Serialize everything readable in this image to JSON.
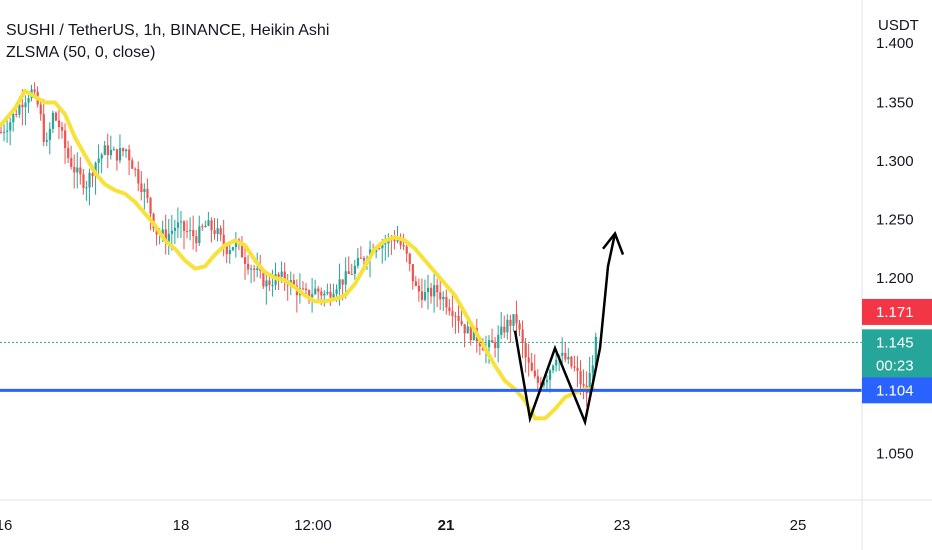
{
  "legend": {
    "symbol_line": "SUSHI / TetherUS, 1h, BINANCE, Heikin Ashi",
    "indicator_line": "ZLSMA (50, 0, close)"
  },
  "axis": {
    "currency": "USDT",
    "partial_top_label": "1.400",
    "price_ticks": [
      "1.350",
      "1.300",
      "1.250",
      "1.200",
      "1.050"
    ],
    "time_ticks": [
      "16",
      "18",
      "12:00",
      "21",
      "23",
      "25"
    ],
    "bold_time_tick": "21"
  },
  "tags": {
    "ask_price": "1.171",
    "last_price": "1.145",
    "countdown": "00:23",
    "support_price": "1.104"
  },
  "colors": {
    "up": "#26a69a",
    "down": "#ef5350",
    "zlsma": "#f7e23a",
    "support": "#2962ff",
    "drawing": "#000000",
    "ask_tag": "#f23645",
    "last_tag": "#26a69a",
    "support_tag": "#2962ff",
    "dotted_last": "#26a69a"
  },
  "chart_data": {
    "type": "candlestick",
    "chart_style": "Heikin Ashi",
    "x_axis": "time (1h bars)",
    "y_axis": "USDT",
    "ylim": [
      1.02,
      1.41
    ],
    "anchor_points": [
      [
        0,
        1.325
      ],
      [
        10,
        1.335
      ],
      [
        20,
        1.35
      ],
      [
        30,
        1.36
      ],
      [
        38,
        1.345
      ],
      [
        45,
        1.31
      ],
      [
        52,
        1.34
      ],
      [
        58,
        1.33
      ],
      [
        66,
        1.305
      ],
      [
        75,
        1.29
      ],
      [
        85,
        1.28
      ],
      [
        95,
        1.3
      ],
      [
        105,
        1.31
      ],
      [
        115,
        1.305
      ],
      [
        125,
        1.31
      ],
      [
        135,
        1.29
      ],
      [
        145,
        1.27
      ],
      [
        155,
        1.24
      ],
      [
        165,
        1.235
      ],
      [
        175,
        1.245
      ],
      [
        185,
        1.24
      ],
      [
        195,
        1.235
      ],
      [
        205,
        1.245
      ],
      [
        215,
        1.24
      ],
      [
        225,
        1.225
      ],
      [
        235,
        1.23
      ],
      [
        245,
        1.215
      ],
      [
        255,
        1.205
      ],
      [
        265,
        1.195
      ],
      [
        275,
        1.2
      ],
      [
        285,
        1.2
      ],
      [
        295,
        1.19
      ],
      [
        305,
        1.185
      ],
      [
        315,
        1.19
      ],
      [
        325,
        1.185
      ],
      [
        335,
        1.195
      ],
      [
        345,
        1.2
      ],
      [
        355,
        1.21
      ],
      [
        365,
        1.22
      ],
      [
        375,
        1.23
      ],
      [
        385,
        1.23
      ],
      [
        395,
        1.235
      ],
      [
        405,
        1.22
      ],
      [
        415,
        1.19
      ],
      [
        425,
        1.185
      ],
      [
        435,
        1.19
      ],
      [
        445,
        1.18
      ],
      [
        455,
        1.17
      ],
      [
        465,
        1.155
      ],
      [
        475,
        1.15
      ],
      [
        485,
        1.14
      ],
      [
        495,
        1.145
      ],
      [
        505,
        1.16
      ],
      [
        515,
        1.165
      ],
      [
        525,
        1.13
      ],
      [
        535,
        1.11
      ],
      [
        545,
        1.115
      ],
      [
        555,
        1.135
      ],
      [
        565,
        1.13
      ],
      [
        575,
        1.12
      ],
      [
        585,
        1.1
      ],
      [
        595,
        1.145
      ]
    ],
    "zlsma": [
      [
        0,
        1.33
      ],
      [
        15,
        1.345
      ],
      [
        25,
        1.36
      ],
      [
        35,
        1.355
      ],
      [
        45,
        1.35
      ],
      [
        55,
        1.35
      ],
      [
        65,
        1.34
      ],
      [
        75,
        1.32
      ],
      [
        85,
        1.305
      ],
      [
        95,
        1.29
      ],
      [
        105,
        1.28
      ],
      [
        115,
        1.275
      ],
      [
        125,
        1.272
      ],
      [
        135,
        1.265
      ],
      [
        145,
        1.255
      ],
      [
        155,
        1.245
      ],
      [
        165,
        1.232
      ],
      [
        175,
        1.225
      ],
      [
        185,
        1.215
      ],
      [
        195,
        1.208
      ],
      [
        205,
        1.21
      ],
      [
        215,
        1.22
      ],
      [
        225,
        1.228
      ],
      [
        235,
        1.232
      ],
      [
        245,
        1.228
      ],
      [
        255,
        1.215
      ],
      [
        265,
        1.205
      ],
      [
        275,
        1.2
      ],
      [
        285,
        1.198
      ],
      [
        295,
        1.192
      ],
      [
        305,
        1.185
      ],
      [
        315,
        1.18
      ],
      [
        325,
        1.18
      ],
      [
        335,
        1.182
      ],
      [
        345,
        1.185
      ],
      [
        355,
        1.195
      ],
      [
        365,
        1.21
      ],
      [
        375,
        1.225
      ],
      [
        385,
        1.232
      ],
      [
        395,
        1.235
      ],
      [
        405,
        1.232
      ],
      [
        415,
        1.225
      ],
      [
        425,
        1.215
      ],
      [
        435,
        1.205
      ],
      [
        445,
        1.195
      ],
      [
        455,
        1.185
      ],
      [
        465,
        1.17
      ],
      [
        475,
        1.155
      ],
      [
        485,
        1.14
      ],
      [
        495,
        1.125
      ],
      [
        505,
        1.112
      ],
      [
        515,
        1.105
      ],
      [
        525,
        1.095
      ],
      [
        535,
        1.08
      ],
      [
        545,
        1.08
      ],
      [
        555,
        1.088
      ],
      [
        565,
        1.098
      ],
      [
        575,
        1.102
      ],
      [
        585,
        1.105
      ],
      [
        595,
        1.105
      ]
    ],
    "support_level": 1.104,
    "last_price": 1.145,
    "ask_price": 1.171,
    "pattern_drawing": {
      "label": "double bottom (W) with breakout arrow",
      "points": [
        [
          515,
          1.155
        ],
        [
          530,
          1.08
        ],
        [
          555,
          1.14
        ],
        [
          585,
          1.077
        ],
        [
          600,
          1.14
        ],
        [
          608,
          1.21
        ],
        [
          615,
          1.238
        ]
      ],
      "arrow_head": [
        [
          603,
          1.225
        ],
        [
          615,
          1.238
        ],
        [
          623,
          1.22
        ]
      ]
    }
  }
}
